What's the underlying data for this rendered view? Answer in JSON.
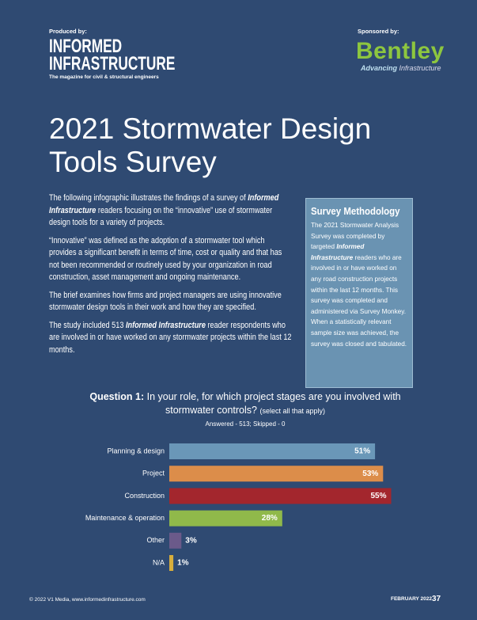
{
  "header": {
    "produced_by": "Produced by:",
    "publisher_line1": "INFORMED",
    "publisher_line2": "INFRASTRUCTURE",
    "publisher_tagline": "The magazine for civil & structural engineers",
    "sponsored_by": "Sponsored by:",
    "sponsor": "Bentley",
    "sponsor_tagline_1": "Advancing",
    "sponsor_tagline_2": "Infrastructure"
  },
  "title": [
    "2021 Stormwater Design",
    "Tools Survey"
  ],
  "intro": [
    [
      "The following infographic illustrates the findings of a survey of ",
      {
        "em": "Informed Infrastructure"
      },
      " readers focusing on the “innovative” use of stormwater design tools for a variety of projects."
    ],
    [
      "“Innovative” was defined as the adoption of a stormwater tool which provides a significant benefit in terms of time, cost or quality and that has not been recommended or routinely used by your organization in road construction, asset management and ongoing maintenance."
    ],
    [
      "The brief examines how firms and project managers are using innovative stormwater design tools in their work and how they are specified."
    ],
    [
      "The study included 513 ",
      {
        "em": "Informed Infrastructure"
      },
      " reader respondents who are involved in or have worked on any stormwater projects within the last 12 months."
    ]
  ],
  "methodology": {
    "title": "Survey Methodology",
    "body": [
      "The 2021 Stormwater Analysis Survey was completed by targeted ",
      {
        "em": "Informed Infrastructure"
      },
      " readers who are involved in or have worked on any road construction projects within the last 12 months. This survey was completed and administered via Survey Monkey. When a statistically relevant sample size was achieved, the survey was closed and tabulated."
    ]
  },
  "chart_data": {
    "type": "bar",
    "orientation": "horizontal",
    "question_label": "Question 1:",
    "title": "In your role, for which project stages are you involved with stormwater controls?",
    "title_note": "(select all that apply)",
    "subtitle": "Answered - 513;  Skipped - 0",
    "categories": [
      "Planning & design",
      "Project",
      "Construction",
      "Maintenance & operation",
      "Other",
      "N/A"
    ],
    "values": [
      51,
      53,
      55,
      28,
      3,
      1
    ],
    "value_labels": [
      "51%",
      "53%",
      "55%",
      "28%",
      "3%",
      "1%"
    ],
    "colors": [
      "#6a97b8",
      "#dc8d4a",
      "#a3262d",
      "#90b94a",
      "#6b5a8a",
      "#d8ae3c"
    ]
  },
  "footer": {
    "copyright": "© 2022 V1 Media, www.informedinfrastructure.com",
    "issue": "FEBRUARY 2022",
    "page": "37"
  }
}
